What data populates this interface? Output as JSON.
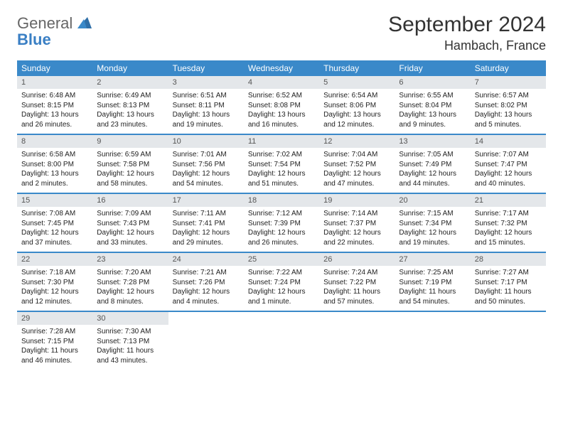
{
  "logo": {
    "word1": "General",
    "word2": "Blue"
  },
  "title": "September 2024",
  "location": "Hambach, France",
  "colors": {
    "header_bg": "#3a89c9",
    "daynum_bg": "#e4e7ea",
    "rule": "#3a89c9",
    "logo_gray": "#666666",
    "logo_blue": "#3a7fc4"
  },
  "day_names": [
    "Sunday",
    "Monday",
    "Tuesday",
    "Wednesday",
    "Thursday",
    "Friday",
    "Saturday"
  ],
  "weeks": [
    [
      {
        "n": "1",
        "sr": "Sunrise: 6:48 AM",
        "ss": "Sunset: 8:15 PM",
        "d1": "Daylight: 13 hours",
        "d2": "and 26 minutes."
      },
      {
        "n": "2",
        "sr": "Sunrise: 6:49 AM",
        "ss": "Sunset: 8:13 PM",
        "d1": "Daylight: 13 hours",
        "d2": "and 23 minutes."
      },
      {
        "n": "3",
        "sr": "Sunrise: 6:51 AM",
        "ss": "Sunset: 8:11 PM",
        "d1": "Daylight: 13 hours",
        "d2": "and 19 minutes."
      },
      {
        "n": "4",
        "sr": "Sunrise: 6:52 AM",
        "ss": "Sunset: 8:08 PM",
        "d1": "Daylight: 13 hours",
        "d2": "and 16 minutes."
      },
      {
        "n": "5",
        "sr": "Sunrise: 6:54 AM",
        "ss": "Sunset: 8:06 PM",
        "d1": "Daylight: 13 hours",
        "d2": "and 12 minutes."
      },
      {
        "n": "6",
        "sr": "Sunrise: 6:55 AM",
        "ss": "Sunset: 8:04 PM",
        "d1": "Daylight: 13 hours",
        "d2": "and 9 minutes."
      },
      {
        "n": "7",
        "sr": "Sunrise: 6:57 AM",
        "ss": "Sunset: 8:02 PM",
        "d1": "Daylight: 13 hours",
        "d2": "and 5 minutes."
      }
    ],
    [
      {
        "n": "8",
        "sr": "Sunrise: 6:58 AM",
        "ss": "Sunset: 8:00 PM",
        "d1": "Daylight: 13 hours",
        "d2": "and 2 minutes."
      },
      {
        "n": "9",
        "sr": "Sunrise: 6:59 AM",
        "ss": "Sunset: 7:58 PM",
        "d1": "Daylight: 12 hours",
        "d2": "and 58 minutes."
      },
      {
        "n": "10",
        "sr": "Sunrise: 7:01 AM",
        "ss": "Sunset: 7:56 PM",
        "d1": "Daylight: 12 hours",
        "d2": "and 54 minutes."
      },
      {
        "n": "11",
        "sr": "Sunrise: 7:02 AM",
        "ss": "Sunset: 7:54 PM",
        "d1": "Daylight: 12 hours",
        "d2": "and 51 minutes."
      },
      {
        "n": "12",
        "sr": "Sunrise: 7:04 AM",
        "ss": "Sunset: 7:52 PM",
        "d1": "Daylight: 12 hours",
        "d2": "and 47 minutes."
      },
      {
        "n": "13",
        "sr": "Sunrise: 7:05 AM",
        "ss": "Sunset: 7:49 PM",
        "d1": "Daylight: 12 hours",
        "d2": "and 44 minutes."
      },
      {
        "n": "14",
        "sr": "Sunrise: 7:07 AM",
        "ss": "Sunset: 7:47 PM",
        "d1": "Daylight: 12 hours",
        "d2": "and 40 minutes."
      }
    ],
    [
      {
        "n": "15",
        "sr": "Sunrise: 7:08 AM",
        "ss": "Sunset: 7:45 PM",
        "d1": "Daylight: 12 hours",
        "d2": "and 37 minutes."
      },
      {
        "n": "16",
        "sr": "Sunrise: 7:09 AM",
        "ss": "Sunset: 7:43 PM",
        "d1": "Daylight: 12 hours",
        "d2": "and 33 minutes."
      },
      {
        "n": "17",
        "sr": "Sunrise: 7:11 AM",
        "ss": "Sunset: 7:41 PM",
        "d1": "Daylight: 12 hours",
        "d2": "and 29 minutes."
      },
      {
        "n": "18",
        "sr": "Sunrise: 7:12 AM",
        "ss": "Sunset: 7:39 PM",
        "d1": "Daylight: 12 hours",
        "d2": "and 26 minutes."
      },
      {
        "n": "19",
        "sr": "Sunrise: 7:14 AM",
        "ss": "Sunset: 7:37 PM",
        "d1": "Daylight: 12 hours",
        "d2": "and 22 minutes."
      },
      {
        "n": "20",
        "sr": "Sunrise: 7:15 AM",
        "ss": "Sunset: 7:34 PM",
        "d1": "Daylight: 12 hours",
        "d2": "and 19 minutes."
      },
      {
        "n": "21",
        "sr": "Sunrise: 7:17 AM",
        "ss": "Sunset: 7:32 PM",
        "d1": "Daylight: 12 hours",
        "d2": "and 15 minutes."
      }
    ],
    [
      {
        "n": "22",
        "sr": "Sunrise: 7:18 AM",
        "ss": "Sunset: 7:30 PM",
        "d1": "Daylight: 12 hours",
        "d2": "and 12 minutes."
      },
      {
        "n": "23",
        "sr": "Sunrise: 7:20 AM",
        "ss": "Sunset: 7:28 PM",
        "d1": "Daylight: 12 hours",
        "d2": "and 8 minutes."
      },
      {
        "n": "24",
        "sr": "Sunrise: 7:21 AM",
        "ss": "Sunset: 7:26 PM",
        "d1": "Daylight: 12 hours",
        "d2": "and 4 minutes."
      },
      {
        "n": "25",
        "sr": "Sunrise: 7:22 AM",
        "ss": "Sunset: 7:24 PM",
        "d1": "Daylight: 12 hours",
        "d2": "and 1 minute."
      },
      {
        "n": "26",
        "sr": "Sunrise: 7:24 AM",
        "ss": "Sunset: 7:22 PM",
        "d1": "Daylight: 11 hours",
        "d2": "and 57 minutes."
      },
      {
        "n": "27",
        "sr": "Sunrise: 7:25 AM",
        "ss": "Sunset: 7:19 PM",
        "d1": "Daylight: 11 hours",
        "d2": "and 54 minutes."
      },
      {
        "n": "28",
        "sr": "Sunrise: 7:27 AM",
        "ss": "Sunset: 7:17 PM",
        "d1": "Daylight: 11 hours",
        "d2": "and 50 minutes."
      }
    ],
    [
      {
        "n": "29",
        "sr": "Sunrise: 7:28 AM",
        "ss": "Sunset: 7:15 PM",
        "d1": "Daylight: 11 hours",
        "d2": "and 46 minutes."
      },
      {
        "n": "30",
        "sr": "Sunrise: 7:30 AM",
        "ss": "Sunset: 7:13 PM",
        "d1": "Daylight: 11 hours",
        "d2": "and 43 minutes."
      },
      null,
      null,
      null,
      null,
      null
    ]
  ]
}
